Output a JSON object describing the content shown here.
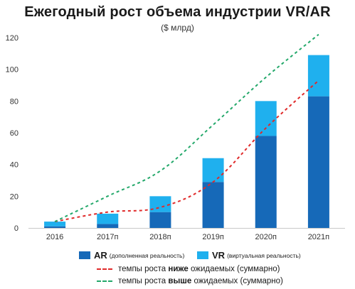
{
  "header": {
    "title": "Ежегодный рост объема индустрии VR/AR",
    "subtitle": "($ млрд)"
  },
  "colors": {
    "ar": "#1669b8",
    "vr": "#1fb0ee",
    "below": "#e02a2a",
    "above": "#23a86a",
    "axis": "#c8c8c8"
  },
  "legend": {
    "ar_main": "AR",
    "ar_sub": "(дополненная реальность)",
    "vr_main": "VR",
    "vr_sub": "(виртуальная реальность)",
    "below_pre": "темпы роста",
    "below_em": "ниже",
    "below_post": "ожидаемых (суммарно)",
    "above_pre": "темпы роста",
    "above_em": "выше",
    "above_post": "ожидаемых (суммарно)"
  },
  "chart_data": {
    "type": "bar",
    "stacked": true,
    "categories": [
      "2016",
      "2017п",
      "2018п",
      "2019п",
      "2020п",
      "2021п"
    ],
    "series": [
      {
        "name": "AR (дополненная реальность)",
        "values": [
          1,
          2.5,
          10,
          29,
          58,
          83
        ]
      },
      {
        "name": "VR (виртуальная реальность)",
        "values": [
          3,
          6.5,
          10,
          15,
          22,
          26
        ]
      }
    ],
    "lines": [
      {
        "name": "темпы роста ниже ожидаемых (суммарно)",
        "values": [
          4,
          10,
          13,
          29,
          63,
          93
        ]
      },
      {
        "name": "темпы роста выше ожидаемых (суммарно)",
        "values": [
          4,
          20,
          36,
          65,
          95,
          122
        ]
      }
    ],
    "ylim": [
      0,
      120
    ],
    "yticks": [
      0,
      20,
      40,
      60,
      80,
      100,
      120
    ],
    "grid": false,
    "legend_position": "bottom"
  }
}
